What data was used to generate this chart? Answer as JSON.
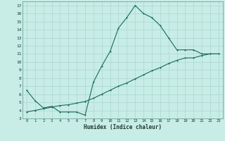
{
  "xlabel": "Humidex (Indice chaleur)",
  "background_color": "#c8ece6",
  "grid_color": "#a8d8d0",
  "line_color": "#1a6b5a",
  "xlim": [
    -0.5,
    23.5
  ],
  "ylim": [
    3,
    17.5
  ],
  "xticks": [
    0,
    1,
    2,
    3,
    4,
    5,
    6,
    7,
    8,
    9,
    10,
    11,
    12,
    13,
    14,
    15,
    16,
    17,
    18,
    19,
    20,
    21,
    22,
    23
  ],
  "yticks": [
    3,
    4,
    5,
    6,
    7,
    8,
    9,
    10,
    11,
    12,
    13,
    14,
    15,
    16,
    17
  ],
  "series1_x": [
    0,
    1,
    2,
    3,
    4,
    5,
    6,
    7,
    8,
    9,
    10,
    11,
    12,
    13,
    14,
    15,
    16,
    17,
    18,
    19,
    20,
    21,
    22,
    23
  ],
  "series1_y": [
    6.5,
    5.2,
    4.3,
    4.5,
    3.8,
    3.8,
    3.8,
    3.4,
    7.5,
    9.5,
    11.3,
    14.2,
    15.5,
    17.0,
    16.0,
    15.5,
    14.5,
    13.0,
    11.5,
    11.5,
    11.5,
    11.0,
    11.0,
    11.0
  ],
  "series2_x": [
    0,
    1,
    2,
    3,
    4,
    5,
    6,
    7,
    8,
    9,
    10,
    11,
    12,
    13,
    14,
    15,
    16,
    17,
    18,
    19,
    20,
    21,
    22,
    23
  ],
  "series2_y": [
    3.8,
    4.0,
    4.2,
    4.4,
    4.6,
    4.7,
    4.9,
    5.1,
    5.5,
    6.0,
    6.5,
    7.0,
    7.4,
    7.9,
    8.4,
    8.9,
    9.3,
    9.8,
    10.2,
    10.5,
    10.5,
    10.8,
    11.0,
    11.0
  ]
}
